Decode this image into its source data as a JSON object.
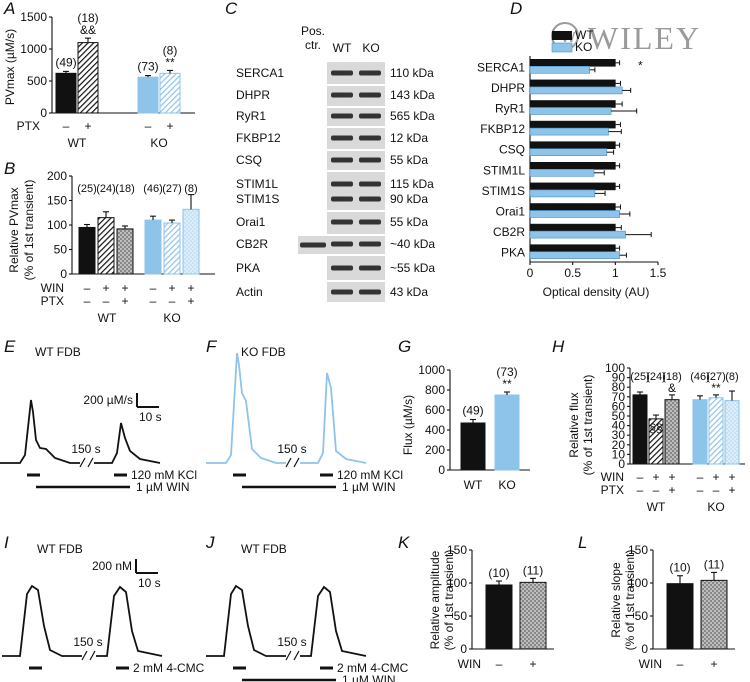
{
  "watermark": "WILEY",
  "colors": {
    "wt": "#111111",
    "ko": "#8ec3ea",
    "ko_light": "#c6e2f6",
    "trace_ko": "#8ec3ea"
  },
  "chart_data": [
    {
      "id": "A",
      "type": "bar",
      "panel_label": "A",
      "ylabel": "PVmax (µM/s)",
      "ylim": [
        0,
        1500
      ],
      "yticks": [
        "0",
        "500",
        "1000",
        "1500"
      ],
      "ptx_label": "PTX",
      "ptx": [
        "–",
        "+",
        "–",
        "+"
      ],
      "groups": [
        "WT",
        "KO"
      ],
      "n_labels": [
        "(49)",
        "(18)",
        "(73)",
        "(8)"
      ],
      "sig_labels": [
        "",
        "&&",
        "",
        "**"
      ],
      "series": [
        {
          "values": [
            620,
            1100,
            560,
            620
          ],
          "errors": [
            30,
            70,
            25,
            45
          ]
        }
      ]
    },
    {
      "id": "B",
      "type": "bar",
      "panel_label": "B",
      "ylabel": "Relative PVmax",
      "ylabel2": "(% of 1st transient)",
      "ylim": [
        0,
        200
      ],
      "yticks": [
        "0",
        "50",
        "100",
        "150",
        "200"
      ],
      "n_labels": [
        "(25)",
        "(24)",
        "(18)",
        "(46)",
        "(27)",
        "(8)"
      ],
      "win_label": "WIN",
      "ptx_label": "PTX",
      "win": [
        "–",
        "+",
        "+",
        "–",
        "+",
        "+"
      ],
      "ptx": [
        "–",
        "–",
        "+",
        "–",
        "–",
        "+"
      ],
      "groups": [
        "WT",
        "KO"
      ],
      "series": [
        {
          "values": [
            95,
            115,
            92,
            110,
            104,
            132
          ],
          "errors": [
            6,
            12,
            6,
            8,
            6,
            30
          ]
        }
      ]
    },
    {
      "id": "C",
      "type": "table",
      "panel_label": "C",
      "columns": [
        "Pos. ctr.",
        "WT",
        "KO"
      ],
      "rows": [
        {
          "protein": "SERCA1",
          "size": "110 kDa"
        },
        {
          "protein": "DHPR",
          "size": "143 kDa"
        },
        {
          "protein": "RyR1",
          "size": "565 kDa"
        },
        {
          "protein": "FKBP12",
          "size": "12 kDa"
        },
        {
          "protein": "CSQ",
          "size": "55 kDa"
        },
        {
          "protein": "STIM1L",
          "size": "115 kDa"
        },
        {
          "protein": "STIM1S",
          "size": "90 kDa"
        },
        {
          "protein": "Orai1",
          "size": "55 kDa"
        },
        {
          "protein": "CB2R",
          "size": "~40 kDa"
        },
        {
          "protein": "PKA",
          "size": "~55 kDa"
        },
        {
          "protein": "Actin",
          "size": "43 kDa"
        }
      ]
    },
    {
      "id": "D",
      "type": "bar",
      "orientation": "horizontal",
      "panel_label": "D",
      "xlabel": "Optical density (AU)",
      "xlim": [
        0,
        1.5
      ],
      "xticks": [
        "0",
        "0.5",
        "1",
        "1.5"
      ],
      "legend": "top-left",
      "categories": [
        "SERCA1",
        "DHPR",
        "RyR1",
        "FKBP12",
        "CSQ",
        "STIM1L",
        "STIM1S",
        "Orai1",
        "CB2R",
        "PKA"
      ],
      "sig_labels": [
        "*",
        "",
        "",
        "",
        "",
        "",
        "",
        "",
        "",
        ""
      ],
      "series": [
        {
          "name": "WT",
          "values": [
            1.0,
            1.0,
            1.0,
            1.0,
            1.0,
            1.0,
            1.0,
            1.0,
            1.0,
            1.0
          ],
          "errors": [
            0.05,
            0.06,
            0.08,
            0.06,
            0.05,
            0.05,
            0.05,
            0.06,
            0.07,
            0.05
          ]
        },
        {
          "name": "KO",
          "values": [
            0.7,
            1.08,
            0.95,
            0.92,
            0.9,
            0.75,
            0.76,
            1.05,
            1.12,
            1.05
          ],
          "errors": [
            0.06,
            0.1,
            0.3,
            0.15,
            0.08,
            0.12,
            0.12,
            0.12,
            0.3,
            0.08
          ]
        }
      ]
    },
    {
      "id": "E",
      "type": "line",
      "panel_label": "E",
      "title": "WT FDB",
      "scale_y": "200 µM/s",
      "scale_x": "10 s",
      "gap_label": "150 s",
      "stim_label": "120 mM KCl",
      "drug_label": "1 µM WIN"
    },
    {
      "id": "F",
      "type": "line",
      "panel_label": "F",
      "title": "KO FDB",
      "gap_label": "150 s",
      "stim_label": "120 mM KCl",
      "drug_label": "1 µM WIN"
    },
    {
      "id": "G",
      "type": "bar",
      "panel_label": "G",
      "ylabel": "Flux (µM/s)",
      "ylim": [
        0,
        1000
      ],
      "yticks": [
        "0",
        "200",
        "400",
        "600",
        "800",
        "1000"
      ],
      "categories": [
        "WT",
        "KO"
      ],
      "n_labels": [
        "(49)",
        "(73)"
      ],
      "sig_labels": [
        "",
        "**"
      ],
      "series": [
        {
          "values": [
            470,
            750
          ],
          "errors": [
            35,
            30
          ]
        }
      ]
    },
    {
      "id": "H",
      "type": "bar",
      "panel_label": "H",
      "ylabel": "Relative flux",
      "ylabel2": "(% of 1st transient)",
      "ylim": [
        0,
        100
      ],
      "yticks": [
        "0",
        "10",
        "20",
        "30",
        "40",
        "50",
        "60",
        "70",
        "80",
        "90",
        "100"
      ],
      "n_labels": [
        "(25)",
        "(24)",
        "(18)",
        "(46)",
        "(27)",
        "(8)"
      ],
      "sig_labels": [
        "",
        "§§",
        "&",
        "",
        "**",
        ""
      ],
      "win_label": "WIN",
      "ptx_label": "PTX",
      "win": [
        "–",
        "+",
        "+",
        "–",
        "+",
        "+"
      ],
      "ptx": [
        "–",
        "–",
        "+",
        "–",
        "–",
        "+"
      ],
      "groups": [
        "WT",
        "KO"
      ],
      "series": [
        {
          "values": [
            72,
            47,
            67,
            67,
            69,
            66
          ],
          "errors": [
            3,
            4,
            5,
            4,
            3,
            10
          ]
        }
      ]
    },
    {
      "id": "I",
      "type": "line",
      "panel_label": "I",
      "title": "WT FDB",
      "scale_y": "200 nM",
      "scale_x": "10 s",
      "gap_label": "150 s",
      "stim_label": "2 mM 4-CMC"
    },
    {
      "id": "J",
      "type": "line",
      "panel_label": "J",
      "title": "WT FDB",
      "gap_label": "150 s",
      "stim_label": "2 mM 4-CMC",
      "drug_label": "1 µM WIN"
    },
    {
      "id": "K",
      "type": "bar",
      "panel_label": "K",
      "ylabel": "Relative amplitude",
      "ylabel2": "(% of 1st transient)",
      "ylim": [
        0,
        150
      ],
      "yticks": [
        "0",
        "50",
        "100",
        "150"
      ],
      "win_label": "WIN",
      "win": [
        "–",
        "+"
      ],
      "n_labels": [
        "(10)",
        "(11)"
      ],
      "series": [
        {
          "values": [
            97,
            101
          ],
          "errors": [
            6,
            6
          ]
        }
      ]
    },
    {
      "id": "L",
      "type": "bar",
      "panel_label": "L",
      "ylabel": "Relative slope",
      "ylabel2": "(% of 1st transient)",
      "ylim": [
        0,
        150
      ],
      "yticks": [
        "0",
        "50",
        "100",
        "150"
      ],
      "win_label": "WIN",
      "win": [
        "–",
        "+"
      ],
      "n_labels": [
        "(10)",
        "(11)"
      ],
      "series": [
        {
          "values": [
            99,
            104
          ],
          "errors": [
            12,
            12
          ]
        }
      ]
    }
  ]
}
